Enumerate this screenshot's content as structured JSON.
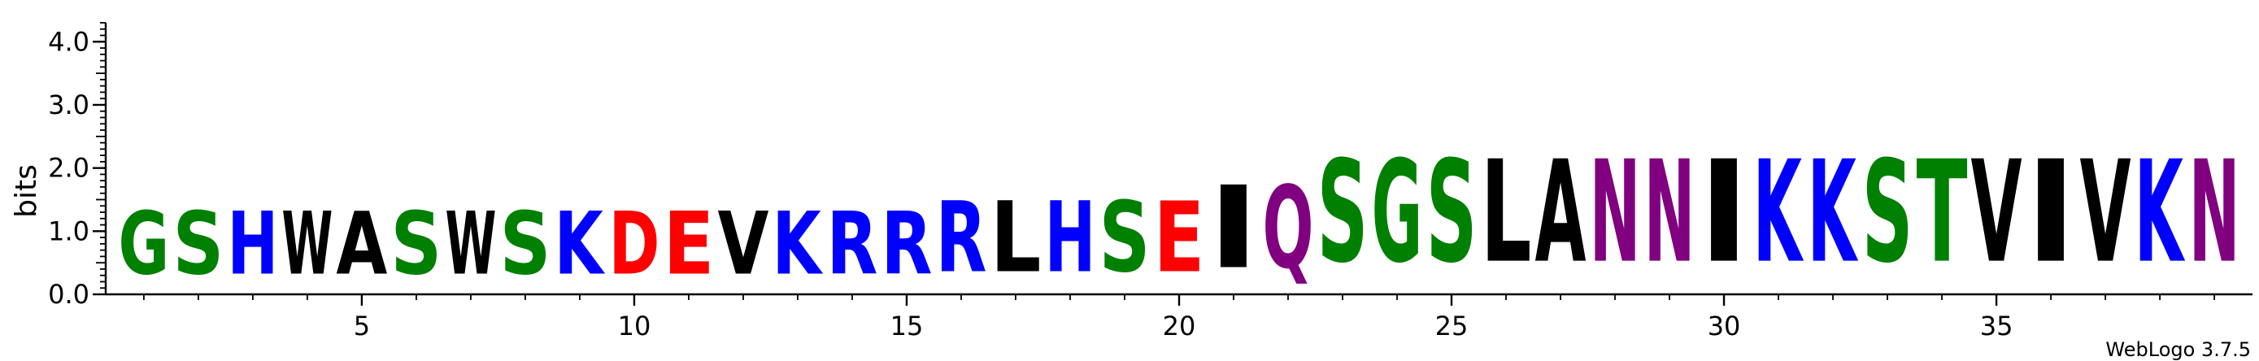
{
  "chart_data": {
    "type": "sequence-logo",
    "ylabel": "bits",
    "ylim": [
      0,
      4.3
    ],
    "y_ticks": [
      "0.0",
      "1.0",
      "2.0",
      "3.0",
      "4.0"
    ],
    "x_ticks": [
      "5",
      "10",
      "15",
      "20",
      "25",
      "30",
      "35"
    ],
    "footer": "WebLogo 3.7.5",
    "colors": {
      "G": "#008000",
      "S": "#008000",
      "T": "#008000",
      "Y": "#008000",
      "C": "#008000",
      "Q": "#800080",
      "N": "#800080",
      "K": "#0000ff",
      "R": "#0000ff",
      "H": "#0000ff",
      "D": "#ff0000",
      "E": "#ff0000",
      "A": "#000000",
      "V": "#000000",
      "L": "#000000",
      "I": "#000000",
      "P": "#000000",
      "W": "#000000",
      "F": "#000000",
      "M": "#000000"
    },
    "positions": [
      {
        "pos": 1,
        "stack": [
          {
            "letter": "G",
            "bits": 1.6
          }
        ]
      },
      {
        "pos": 2,
        "stack": [
          {
            "letter": "S",
            "bits": 1.6
          }
        ]
      },
      {
        "pos": 3,
        "stack": [
          {
            "letter": "H",
            "bits": 1.6
          }
        ]
      },
      {
        "pos": 4,
        "stack": [
          {
            "letter": "W",
            "bits": 1.6
          }
        ]
      },
      {
        "pos": 5,
        "stack": [
          {
            "letter": "A",
            "bits": 1.6
          }
        ]
      },
      {
        "pos": 6,
        "stack": [
          {
            "letter": "S",
            "bits": 1.6
          }
        ]
      },
      {
        "pos": 7,
        "stack": [
          {
            "letter": "W",
            "bits": 1.6
          }
        ]
      },
      {
        "pos": 8,
        "stack": [
          {
            "letter": "S",
            "bits": 1.6
          }
        ]
      },
      {
        "pos": 9,
        "stack": [
          {
            "letter": "K",
            "bits": 1.6
          }
        ]
      },
      {
        "pos": 10,
        "stack": [
          {
            "letter": "D",
            "bits": 1.6
          }
        ]
      },
      {
        "pos": 11,
        "stack": [
          {
            "letter": "E",
            "bits": 1.6
          }
        ]
      },
      {
        "pos": 12,
        "stack": [
          {
            "letter": "V",
            "bits": 1.6
          }
        ]
      },
      {
        "pos": 13,
        "stack": [
          {
            "letter": "K",
            "bits": 1.6
          }
        ]
      },
      {
        "pos": 14,
        "stack": [
          {
            "letter": "R",
            "bits": 1.6
          }
        ]
      },
      {
        "pos": 15,
        "stack": [
          {
            "letter": "R",
            "bits": 1.6
          }
        ]
      },
      {
        "pos": 16,
        "stack": [
          {
            "letter": "R",
            "bits": 1.8
          }
        ]
      },
      {
        "pos": 17,
        "stack": [
          {
            "letter": "L",
            "bits": 1.8
          }
        ]
      },
      {
        "pos": 18,
        "stack": [
          {
            "letter": "H",
            "bits": 1.8
          }
        ]
      },
      {
        "pos": 19,
        "stack": [
          {
            "letter": "S",
            "bits": 1.8
          }
        ]
      },
      {
        "pos": 20,
        "stack": [
          {
            "letter": "E",
            "bits": 1.8
          }
        ]
      },
      {
        "pos": 21,
        "stack": [
          {
            "letter": "I",
            "bits": 2.1
          }
        ]
      },
      {
        "pos": 22,
        "stack": [
          {
            "letter": "Q",
            "bits": 2.1
          }
        ]
      },
      {
        "pos": 23,
        "stack": [
          {
            "letter": "S",
            "bits": 2.6
          }
        ]
      },
      {
        "pos": 24,
        "stack": [
          {
            "letter": "G",
            "bits": 2.6
          }
        ]
      },
      {
        "pos": 25,
        "stack": [
          {
            "letter": "S",
            "bits": 2.6
          }
        ]
      },
      {
        "pos": 26,
        "stack": [
          {
            "letter": "L",
            "bits": 2.6
          }
        ]
      },
      {
        "pos": 27,
        "stack": [
          {
            "letter": "A",
            "bits": 2.6
          }
        ]
      },
      {
        "pos": 28,
        "stack": [
          {
            "letter": "N",
            "bits": 2.6
          }
        ]
      },
      {
        "pos": 29,
        "stack": [
          {
            "letter": "N",
            "bits": 2.6
          }
        ]
      },
      {
        "pos": 30,
        "stack": [
          {
            "letter": "I",
            "bits": 2.6
          }
        ]
      },
      {
        "pos": 31,
        "stack": [
          {
            "letter": "K",
            "bits": 2.6
          }
        ]
      },
      {
        "pos": 32,
        "stack": [
          {
            "letter": "K",
            "bits": 2.6
          }
        ]
      },
      {
        "pos": 33,
        "stack": [
          {
            "letter": "S",
            "bits": 2.6
          }
        ]
      },
      {
        "pos": 34,
        "stack": [
          {
            "letter": "T",
            "bits": 2.6
          }
        ]
      },
      {
        "pos": 35,
        "stack": [
          {
            "letter": "V",
            "bits": 2.6
          }
        ]
      },
      {
        "pos": 36,
        "stack": [
          {
            "letter": "I",
            "bits": 2.6
          }
        ]
      },
      {
        "pos": 37,
        "stack": [
          {
            "letter": "V",
            "bits": 2.6
          }
        ]
      },
      {
        "pos": 38,
        "stack": [
          {
            "letter": "K",
            "bits": 2.6
          }
        ]
      },
      {
        "pos": 39,
        "stack": [
          {
            "letter": "N",
            "bits": 2.6
          }
        ]
      }
    ]
  }
}
